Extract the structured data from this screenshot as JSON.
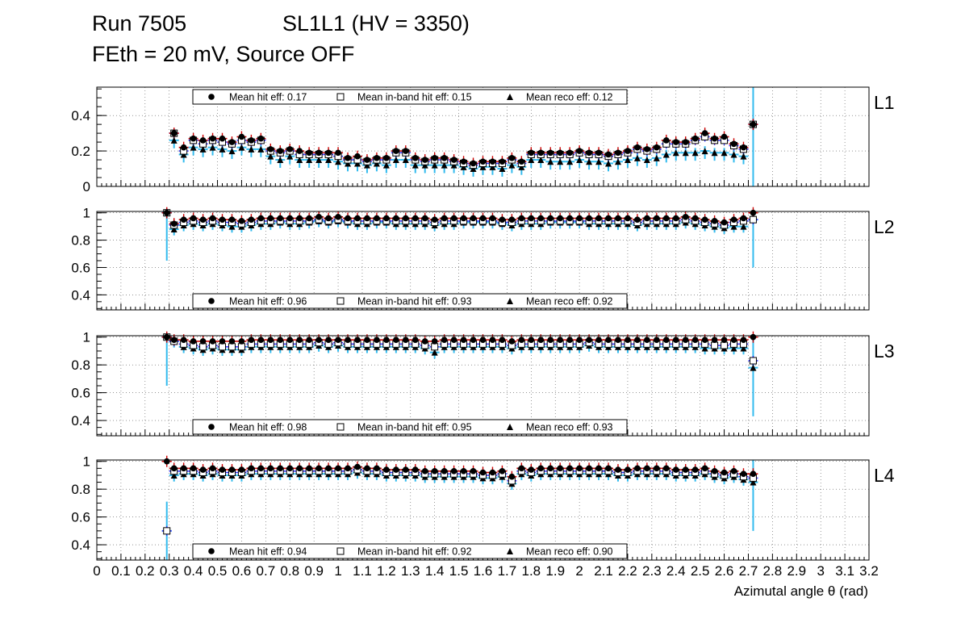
{
  "title_line1_run": "Run 7505",
  "title_line1_sl": "SL1L1 (HV = 3350)",
  "title_line2": "FEth = 20 mV, Source OFF",
  "colors": {
    "hit": "#cc0000",
    "inband": "#3333ff",
    "reco": "#33bbee",
    "marker": "#000000",
    "grid": "#555555"
  },
  "legend_labels": {
    "hit": "Mean hit  eff:",
    "inband": "Mean in-band hit eff:",
    "reco": "Mean reco eff:"
  },
  "chart_data": {
    "type": "scatter",
    "xlabel": "Azimutal angle θ (rad)",
    "xlim": [
      0,
      3.2
    ],
    "x_tick_labels": [
      "0",
      "0.1",
      "0.2",
      "0.3",
      "0.4",
      "0.5",
      "0.6",
      "0.7",
      "0.8",
      "0.9",
      "1",
      "1.1",
      "1.2",
      "1.3",
      "1.4",
      "1.5",
      "1.6",
      "1.7",
      "1.8",
      "1.9",
      "2",
      "2.1",
      "2.2",
      "2.3",
      "2.4",
      "2.5",
      "2.6",
      "2.7",
      "2.8",
      "2.9",
      "3",
      "3.1",
      "3.2"
    ],
    "x": [
      0.29,
      0.32,
      0.36,
      0.4,
      0.44,
      0.48,
      0.52,
      0.56,
      0.6,
      0.64,
      0.68,
      0.72,
      0.76,
      0.8,
      0.84,
      0.88,
      0.92,
      0.96,
      1.0,
      1.04,
      1.08,
      1.12,
      1.16,
      1.2,
      1.24,
      1.28,
      1.32,
      1.36,
      1.4,
      1.44,
      1.48,
      1.52,
      1.56,
      1.6,
      1.64,
      1.68,
      1.72,
      1.76,
      1.8,
      1.84,
      1.88,
      1.92,
      1.96,
      2.0,
      2.04,
      2.08,
      2.12,
      2.16,
      2.2,
      2.24,
      2.28,
      2.32,
      2.36,
      2.4,
      2.44,
      2.48,
      2.52,
      2.56,
      2.6,
      2.64,
      2.68,
      2.72
    ],
    "panels": [
      {
        "label": "L1",
        "ylim": [
          0,
          0.56
        ],
        "yticks": [
          0,
          0.2,
          0.4
        ],
        "ytick_labels": [
          "0",
          "0.2",
          "0.4"
        ],
        "legend_position": "top",
        "mean": {
          "hit": "0.17",
          "inband": "0.15",
          "reco": "0.12"
        },
        "hit": [
          null,
          0.3,
          0.22,
          0.27,
          0.26,
          0.27,
          0.27,
          0.25,
          0.28,
          0.26,
          0.27,
          0.21,
          0.2,
          0.21,
          0.2,
          0.19,
          0.19,
          0.19,
          0.19,
          0.16,
          0.17,
          0.15,
          0.16,
          0.16,
          0.2,
          0.2,
          0.16,
          0.15,
          0.16,
          0.16,
          0.15,
          0.14,
          0.13,
          0.14,
          0.14,
          0.14,
          0.16,
          0.14,
          0.19,
          0.19,
          0.19,
          0.19,
          0.19,
          0.2,
          0.19,
          0.19,
          0.18,
          0.19,
          0.2,
          0.22,
          0.21,
          0.22,
          0.26,
          0.25,
          0.25,
          0.27,
          0.3,
          0.27,
          0.28,
          0.24,
          0.22,
          0.35
        ],
        "inband": [
          null,
          0.3,
          0.2,
          0.26,
          0.24,
          0.26,
          0.25,
          0.24,
          0.26,
          0.25,
          0.26,
          0.2,
          0.19,
          0.2,
          0.18,
          0.18,
          0.18,
          0.18,
          0.17,
          0.15,
          0.15,
          0.14,
          0.15,
          0.15,
          0.19,
          0.19,
          0.15,
          0.14,
          0.15,
          0.15,
          0.14,
          0.13,
          0.12,
          0.13,
          0.13,
          0.13,
          0.15,
          0.13,
          0.18,
          0.18,
          0.18,
          0.18,
          0.18,
          0.19,
          0.18,
          0.18,
          0.17,
          0.18,
          0.19,
          0.21,
          0.2,
          0.21,
          0.24,
          0.24,
          0.24,
          0.26,
          0.28,
          0.26,
          0.26,
          0.23,
          0.21,
          0.35
        ],
        "reco": [
          null,
          0.26,
          0.18,
          0.22,
          0.21,
          0.22,
          0.21,
          0.2,
          0.22,
          0.21,
          0.21,
          0.17,
          0.15,
          0.17,
          0.15,
          0.15,
          0.15,
          0.15,
          0.14,
          0.13,
          0.13,
          0.12,
          0.13,
          0.12,
          0.15,
          0.15,
          0.12,
          0.12,
          0.12,
          0.12,
          0.12,
          0.11,
          0.1,
          0.11,
          0.11,
          0.1,
          0.12,
          0.11,
          0.15,
          0.15,
          0.14,
          0.14,
          0.14,
          0.15,
          0.14,
          0.14,
          0.13,
          0.14,
          0.15,
          0.16,
          0.15,
          0.16,
          0.18,
          0.19,
          0.19,
          0.19,
          0.2,
          0.19,
          0.19,
          0.18,
          0.17,
          0.35
        ]
      },
      {
        "label": "L2",
        "ylim": [
          0.29,
          1.01
        ],
        "yticks": [
          0.4,
          0.6,
          0.8,
          1
        ],
        "ytick_labels": [
          "0.4",
          "0.6",
          "0.8",
          "1"
        ],
        "legend_position": "bottom",
        "mean": {
          "hit": "0.96",
          "inband": "0.93",
          "reco": "0.92"
        },
        "hit": [
          1.0,
          0.92,
          0.95,
          0.96,
          0.95,
          0.96,
          0.95,
          0.95,
          0.94,
          0.95,
          0.96,
          0.96,
          0.96,
          0.96,
          0.96,
          0.96,
          0.97,
          0.96,
          0.97,
          0.96,
          0.96,
          0.96,
          0.96,
          0.96,
          0.96,
          0.96,
          0.96,
          0.96,
          0.95,
          0.96,
          0.96,
          0.96,
          0.96,
          0.96,
          0.96,
          0.95,
          0.95,
          0.96,
          0.96,
          0.96,
          0.96,
          0.96,
          0.96,
          0.96,
          0.96,
          0.96,
          0.96,
          0.96,
          0.96,
          0.95,
          0.96,
          0.96,
          0.96,
          0.96,
          0.97,
          0.96,
          0.95,
          0.94,
          0.93,
          0.95,
          0.96,
          1.0
        ],
        "inband": [
          1.0,
          0.91,
          0.93,
          0.94,
          0.93,
          0.94,
          0.93,
          0.93,
          0.92,
          0.93,
          0.94,
          0.94,
          0.94,
          0.94,
          0.94,
          0.94,
          0.95,
          0.94,
          0.95,
          0.94,
          0.94,
          0.94,
          0.94,
          0.94,
          0.94,
          0.94,
          0.94,
          0.94,
          0.93,
          0.94,
          0.94,
          0.94,
          0.94,
          0.94,
          0.94,
          0.93,
          0.93,
          0.94,
          0.94,
          0.94,
          0.94,
          0.94,
          0.94,
          0.94,
          0.94,
          0.94,
          0.94,
          0.94,
          0.94,
          0.93,
          0.94,
          0.94,
          0.94,
          0.94,
          0.95,
          0.94,
          0.93,
          0.92,
          0.91,
          0.93,
          0.94,
          0.95
        ],
        "reco": [
          1.0,
          0.88,
          0.91,
          0.92,
          0.91,
          0.92,
          0.91,
          0.9,
          0.9,
          0.91,
          0.92,
          0.92,
          0.93,
          0.92,
          0.92,
          0.93,
          0.94,
          0.93,
          0.94,
          0.93,
          0.92,
          0.92,
          0.93,
          0.93,
          0.92,
          0.92,
          0.92,
          0.92,
          0.91,
          0.92,
          0.92,
          0.93,
          0.93,
          0.93,
          0.93,
          0.92,
          0.91,
          0.92,
          0.92,
          0.92,
          0.93,
          0.93,
          0.93,
          0.93,
          0.92,
          0.92,
          0.92,
          0.92,
          0.92,
          0.91,
          0.92,
          0.92,
          0.92,
          0.92,
          0.93,
          0.92,
          0.91,
          0.9,
          0.89,
          0.9,
          0.9,
          0.95
        ]
      },
      {
        "label": "L3",
        "ylim": [
          0.29,
          1.01
        ],
        "yticks": [
          0.4,
          0.6,
          0.8,
          1
        ],
        "ytick_labels": [
          "0.4",
          "0.6",
          "0.8",
          "1"
        ],
        "legend_position": "bottom",
        "mean": {
          "hit": "0.98",
          "inband": "0.95",
          "reco": "0.93"
        },
        "hit": [
          1.0,
          0.98,
          0.98,
          0.97,
          0.97,
          0.97,
          0.97,
          0.97,
          0.97,
          0.98,
          0.98,
          0.98,
          0.98,
          0.98,
          0.98,
          0.98,
          0.98,
          0.98,
          0.98,
          0.98,
          0.98,
          0.98,
          0.98,
          0.98,
          0.98,
          0.98,
          0.98,
          0.97,
          0.97,
          0.98,
          0.98,
          0.98,
          0.98,
          0.98,
          0.98,
          0.98,
          0.97,
          0.98,
          0.98,
          0.98,
          0.98,
          0.98,
          0.98,
          0.98,
          0.98,
          0.98,
          0.98,
          0.98,
          0.98,
          0.98,
          0.98,
          0.98,
          0.98,
          0.98,
          0.98,
          0.98,
          0.98,
          0.98,
          0.98,
          0.98,
          0.98,
          1.0
        ],
        "inband": [
          1.0,
          0.97,
          0.95,
          0.94,
          0.93,
          0.94,
          0.93,
          0.93,
          0.93,
          0.95,
          0.95,
          0.95,
          0.95,
          0.95,
          0.95,
          0.95,
          0.96,
          0.95,
          0.96,
          0.95,
          0.95,
          0.95,
          0.95,
          0.95,
          0.95,
          0.95,
          0.95,
          0.94,
          0.93,
          0.95,
          0.95,
          0.95,
          0.95,
          0.95,
          0.95,
          0.95,
          0.94,
          0.95,
          0.95,
          0.95,
          0.95,
          0.95,
          0.95,
          0.95,
          0.96,
          0.95,
          0.95,
          0.95,
          0.95,
          0.95,
          0.95,
          0.95,
          0.95,
          0.95,
          0.95,
          0.95,
          0.95,
          0.94,
          0.94,
          0.95,
          0.95,
          0.83
        ],
        "reco": [
          1.0,
          0.97,
          0.93,
          0.92,
          0.91,
          0.92,
          0.91,
          0.91,
          0.91,
          0.93,
          0.93,
          0.93,
          0.93,
          0.93,
          0.93,
          0.93,
          0.94,
          0.93,
          0.94,
          0.93,
          0.93,
          0.93,
          0.93,
          0.93,
          0.93,
          0.93,
          0.93,
          0.92,
          0.89,
          0.93,
          0.93,
          0.93,
          0.93,
          0.93,
          0.93,
          0.93,
          0.92,
          0.93,
          0.93,
          0.93,
          0.93,
          0.93,
          0.93,
          0.93,
          0.94,
          0.93,
          0.93,
          0.93,
          0.93,
          0.93,
          0.93,
          0.93,
          0.93,
          0.93,
          0.93,
          0.93,
          0.92,
          0.92,
          0.92,
          0.92,
          0.92,
          0.78
        ]
      },
      {
        "label": "L4",
        "ylim": [
          0.29,
          1.01
        ],
        "yticks": [
          0.4,
          0.6,
          0.8,
          1
        ],
        "ytick_labels": [
          "0.4",
          "0.6",
          "0.8",
          "1"
        ],
        "legend_position": "bottom",
        "mean": {
          "hit": "0.94",
          "inband": "0.92",
          "reco": "0.90"
        },
        "hit": [
          1.0,
          0.95,
          0.95,
          0.95,
          0.94,
          0.95,
          0.94,
          0.94,
          0.94,
          0.95,
          0.95,
          0.95,
          0.95,
          0.95,
          0.95,
          0.95,
          0.95,
          0.95,
          0.95,
          0.95,
          0.96,
          0.95,
          0.95,
          0.94,
          0.94,
          0.94,
          0.94,
          0.93,
          0.93,
          0.93,
          0.93,
          0.93,
          0.93,
          0.92,
          0.92,
          0.93,
          0.89,
          0.95,
          0.94,
          0.95,
          0.95,
          0.95,
          0.95,
          0.95,
          0.95,
          0.95,
          0.95,
          0.94,
          0.94,
          0.95,
          0.95,
          0.95,
          0.95,
          0.94,
          0.94,
          0.94,
          0.95,
          0.93,
          0.92,
          0.93,
          0.91,
          0.91
        ],
        "inband": [
          0.5,
          0.93,
          0.93,
          0.93,
          0.92,
          0.93,
          0.92,
          0.92,
          0.92,
          0.93,
          0.93,
          0.93,
          0.93,
          0.93,
          0.93,
          0.93,
          0.93,
          0.93,
          0.93,
          0.93,
          0.94,
          0.93,
          0.93,
          0.92,
          0.92,
          0.92,
          0.92,
          0.91,
          0.91,
          0.91,
          0.91,
          0.91,
          0.91,
          0.9,
          0.9,
          0.91,
          0.86,
          0.93,
          0.92,
          0.93,
          0.93,
          0.93,
          0.93,
          0.93,
          0.93,
          0.93,
          0.93,
          0.92,
          0.92,
          0.93,
          0.93,
          0.93,
          0.93,
          0.92,
          0.92,
          0.92,
          0.93,
          0.91,
          0.9,
          0.91,
          0.89,
          0.88
        ],
        "reco": [
          0.5,
          0.9,
          0.91,
          0.91,
          0.9,
          0.91,
          0.9,
          0.9,
          0.9,
          0.91,
          0.91,
          0.91,
          0.91,
          0.91,
          0.91,
          0.91,
          0.91,
          0.91,
          0.91,
          0.91,
          0.92,
          0.91,
          0.91,
          0.9,
          0.9,
          0.9,
          0.9,
          0.89,
          0.89,
          0.89,
          0.89,
          0.89,
          0.89,
          0.88,
          0.88,
          0.89,
          0.84,
          0.91,
          0.9,
          0.91,
          0.91,
          0.91,
          0.91,
          0.91,
          0.91,
          0.91,
          0.91,
          0.9,
          0.9,
          0.91,
          0.91,
          0.91,
          0.91,
          0.9,
          0.9,
          0.9,
          0.91,
          0.89,
          0.88,
          0.89,
          0.87,
          0.85
        ]
      }
    ]
  }
}
